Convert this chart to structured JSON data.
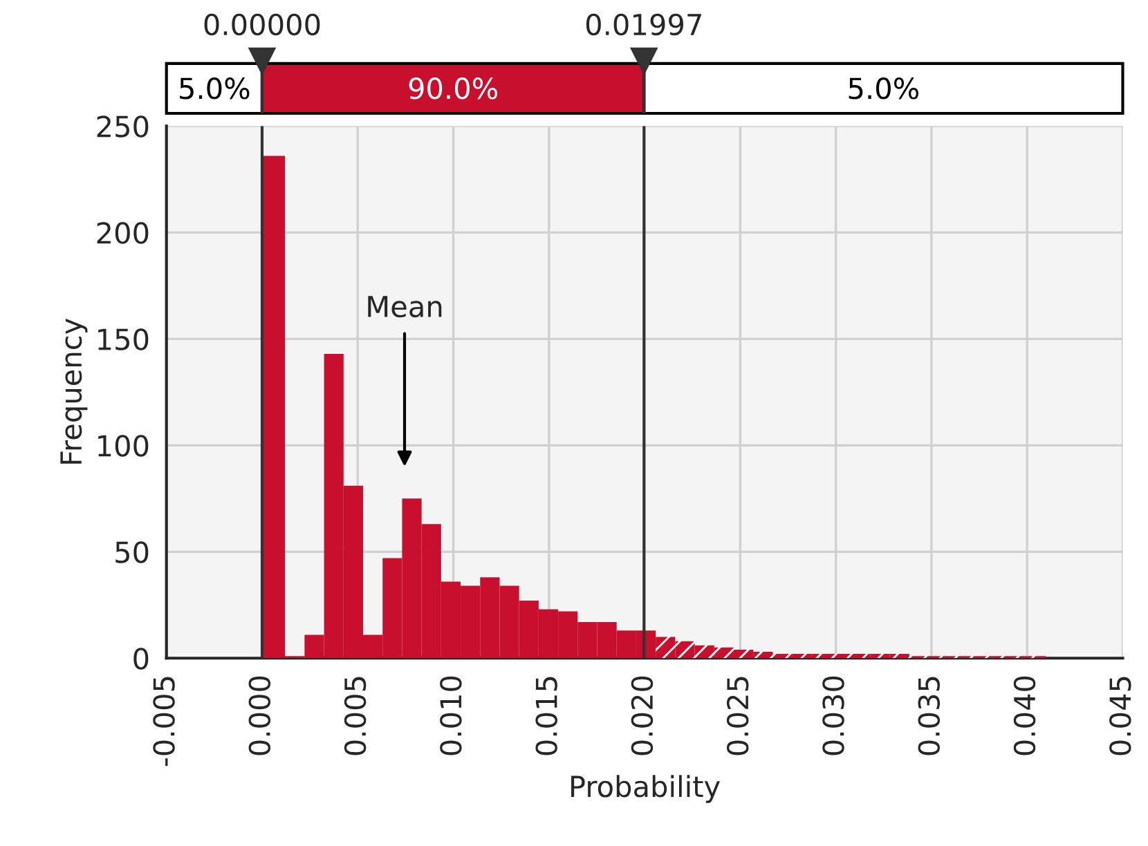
{
  "chart_data": {
    "type": "histogram",
    "xlabel": "Probability",
    "ylabel": "Frequency",
    "bins": [
      0,
      0.0012,
      0.00222,
      0.00324,
      0.00426,
      0.00528,
      0.0063,
      0.00732,
      0.00834,
      0.00936,
      0.01038,
      0.0114,
      0.01242,
      0.01344,
      0.01446,
      0.01548,
      0.0165,
      0.01752,
      0.01854,
      0.01956,
      0.02058,
      0.0216,
      0.02262,
      0.02364,
      0.02466,
      0.02568,
      0.0267,
      0.02772,
      0.02874,
      0.02976,
      0.03078,
      0.0318,
      0.03282,
      0.03384,
      0.03486,
      0.03588,
      0.0369,
      0.03792,
      0.03894,
      0.03996,
      0.04098
    ],
    "values": [
      236,
      1,
      11,
      143,
      81,
      11,
      47,
      75,
      63,
      36,
      34,
      38,
      34,
      27,
      23,
      22,
      17,
      17,
      13,
      13,
      10,
      8,
      6,
      5,
      4,
      3,
      2,
      2,
      2,
      2,
      2,
      2,
      2,
      1,
      1,
      1,
      1,
      1,
      1,
      1
    ],
    "color": "#c8102e",
    "xlim": [
      -0.005,
      0.045
    ],
    "xticks": [
      {
        "value": -0.005,
        "label": "-0.005"
      },
      {
        "value": 0,
        "label": "0.000"
      },
      {
        "value": 0.005,
        "label": "0.005"
      },
      {
        "value": 0.01,
        "label": "0.010"
      },
      {
        "value": 0.015,
        "label": "0.015"
      },
      {
        "value": 0.02,
        "label": "0.020"
      },
      {
        "value": 0.025,
        "label": "0.025"
      },
      {
        "value": 0.03,
        "label": "0.030"
      },
      {
        "value": 0.035,
        "label": "0.035"
      },
      {
        "value": 0.04,
        "label": "0.040"
      },
      {
        "value": 0.045,
        "label": "0.045"
      }
    ],
    "ylim": [
      0,
      250
    ],
    "yticks": [
      0,
      50,
      100,
      150,
      200,
      250
    ],
    "grid": true,
    "ref_lines": [
      {
        "axis": "x",
        "value": 0,
        "label": "0.00000",
        "color": "#333333"
      },
      {
        "axis": "x",
        "value": 0.01997,
        "label": "0.01997",
        "color": "#333333"
      }
    ],
    "annotations": [
      "Mean",
      "5.0%",
      "90.0%",
      "5.0%"
    ]
  }
}
